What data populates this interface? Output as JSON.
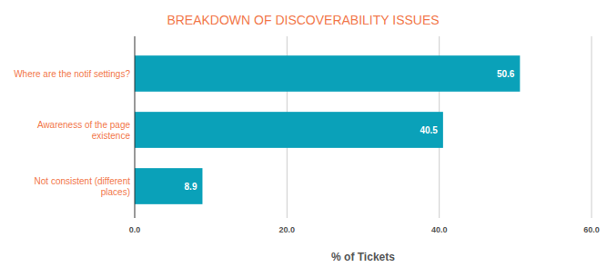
{
  "chart_data": {
    "type": "bar",
    "title": "BREAKDOWN OF DISCOVERABILITY ISSUES",
    "orientation": "horizontal",
    "categories": [
      "Where are the notif settings?",
      "Awareness of the page existence",
      "Not consistent (different places)"
    ],
    "values": [
      50.6,
      40.5,
      8.9
    ],
    "color": "#0aa1b9",
    "xlabel": "% of Tickets",
    "xlim": [
      0,
      60
    ],
    "xticks": [
      {
        "value": 0,
        "label": "0.0"
      },
      {
        "value": 20,
        "label": "20.0"
      },
      {
        "value": 40,
        "label": "40.0"
      },
      {
        "value": 60,
        "label": "60.0"
      }
    ],
    "grid": true,
    "data_labels": true
  }
}
